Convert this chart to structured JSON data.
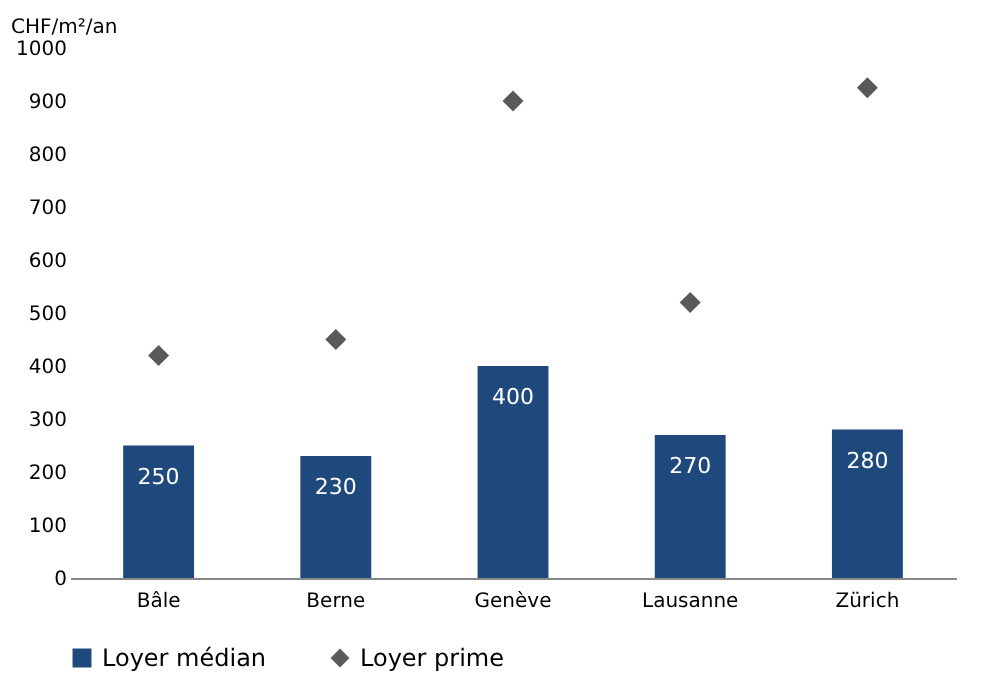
{
  "chart_data": {
    "type": "bar",
    "ylabel": "CHF/m²/an",
    "categories": [
      "Bâle",
      "Berne",
      "Genève",
      "Lausanne",
      "Zürich"
    ],
    "series": [
      {
        "name": "Loyer médian",
        "color": "#1f497d",
        "values": [
          250,
          230,
          400,
          270,
          280
        ],
        "value_labels": [
          "250",
          "230",
          "400",
          "270",
          "280"
        ]
      },
      {
        "name": "Loyer prime",
        "type": "scatter",
        "color": "#595959",
        "values": [
          420,
          450,
          900,
          520,
          925
        ]
      }
    ],
    "ylim": [
      0,
      1000
    ],
    "yticks": [
      0,
      100,
      200,
      300,
      400,
      500,
      600,
      700,
      800,
      900,
      1000
    ],
    "grid": false,
    "legend": "bottom",
    "marker": "diamond"
  }
}
